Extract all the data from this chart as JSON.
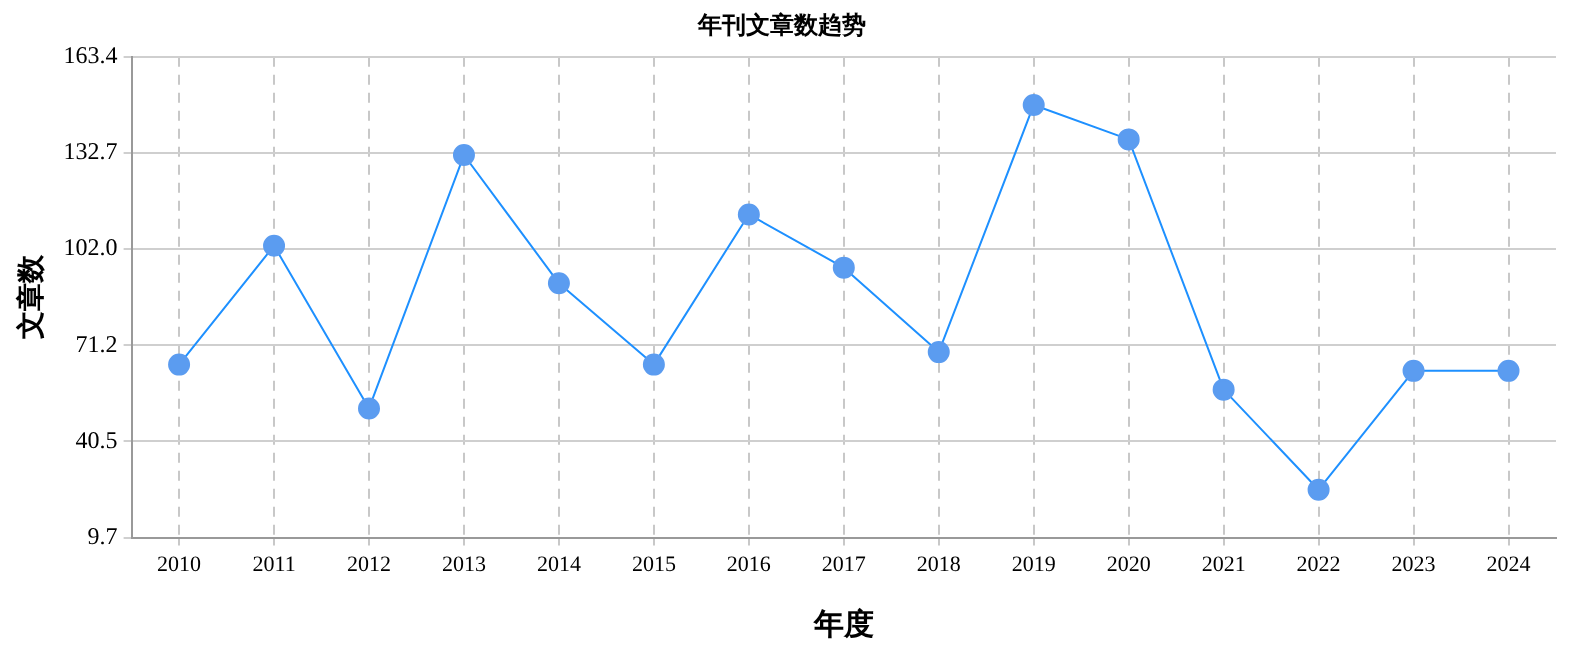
{
  "chart_data": {
    "type": "line",
    "title": "年刊文章数趋势",
    "xlabel": "年度",
    "ylabel": "文章数",
    "categories": [
      "2010",
      "2011",
      "2012",
      "2013",
      "2014",
      "2015",
      "2016",
      "2017",
      "2018",
      "2019",
      "2020",
      "2021",
      "2022",
      "2023",
      "2024"
    ],
    "series": [
      {
        "color": "#1e90ff",
        "values": [
          65,
          103,
          51,
          132,
          91,
          65,
          113,
          96,
          69,
          148,
          137,
          57,
          25,
          63,
          63
        ]
      }
    ],
    "ylim": [
      9.7,
      163.4
    ],
    "yticks": [
      9.7,
      40.5,
      71.2,
      {
        "value": 102.0,
        "label": "102.0"
      },
      132.7,
      163.4
    ],
    "grid": true,
    "legend": false,
    "marker": "circle",
    "line_style": "solid"
  }
}
